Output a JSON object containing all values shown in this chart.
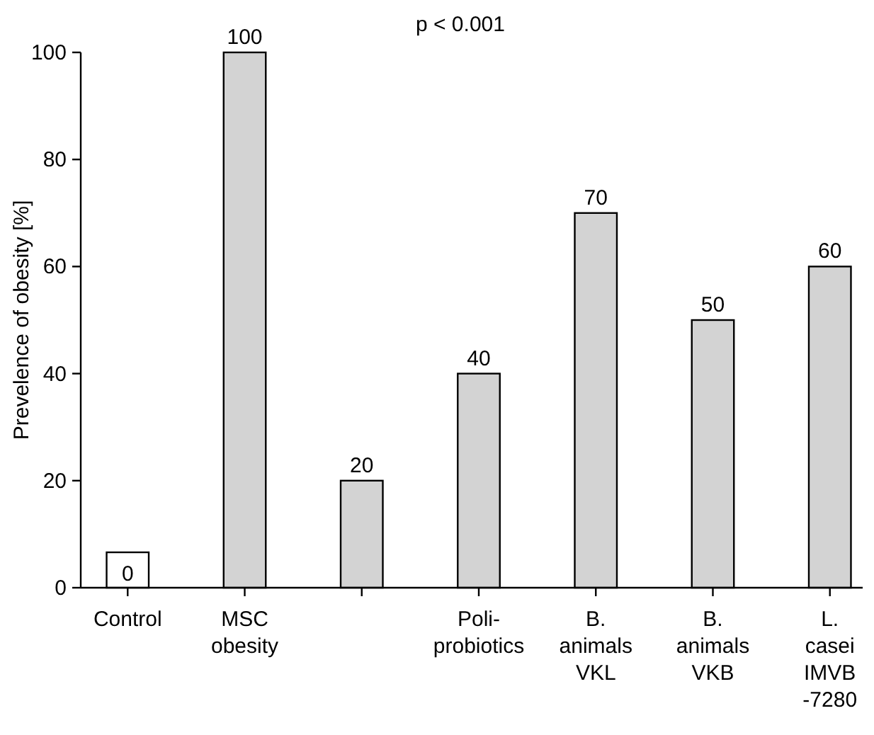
{
  "chart_data": {
    "type": "bar",
    "ylabel": "Prevelence of obesity [%]",
    "annotations": [
      "p < 0.001"
    ],
    "categories": [
      "Control",
      "MSC\nobesity",
      null,
      "Poli-\nprobiotics",
      "B.\nanimals\nVKL",
      "B.\nanimals\nVKB",
      "L.\ncasei\nIMVB\n-7280"
    ],
    "values": [
      0,
      100,
      20,
      40,
      70,
      50,
      60
    ],
    "color": "#d3d3d3",
    "data_labels": true,
    "ylim": [
      0,
      100
    ],
    "yticks": [
      0,
      20,
      40,
      60,
      80,
      100
    ],
    "grid": false
  }
}
